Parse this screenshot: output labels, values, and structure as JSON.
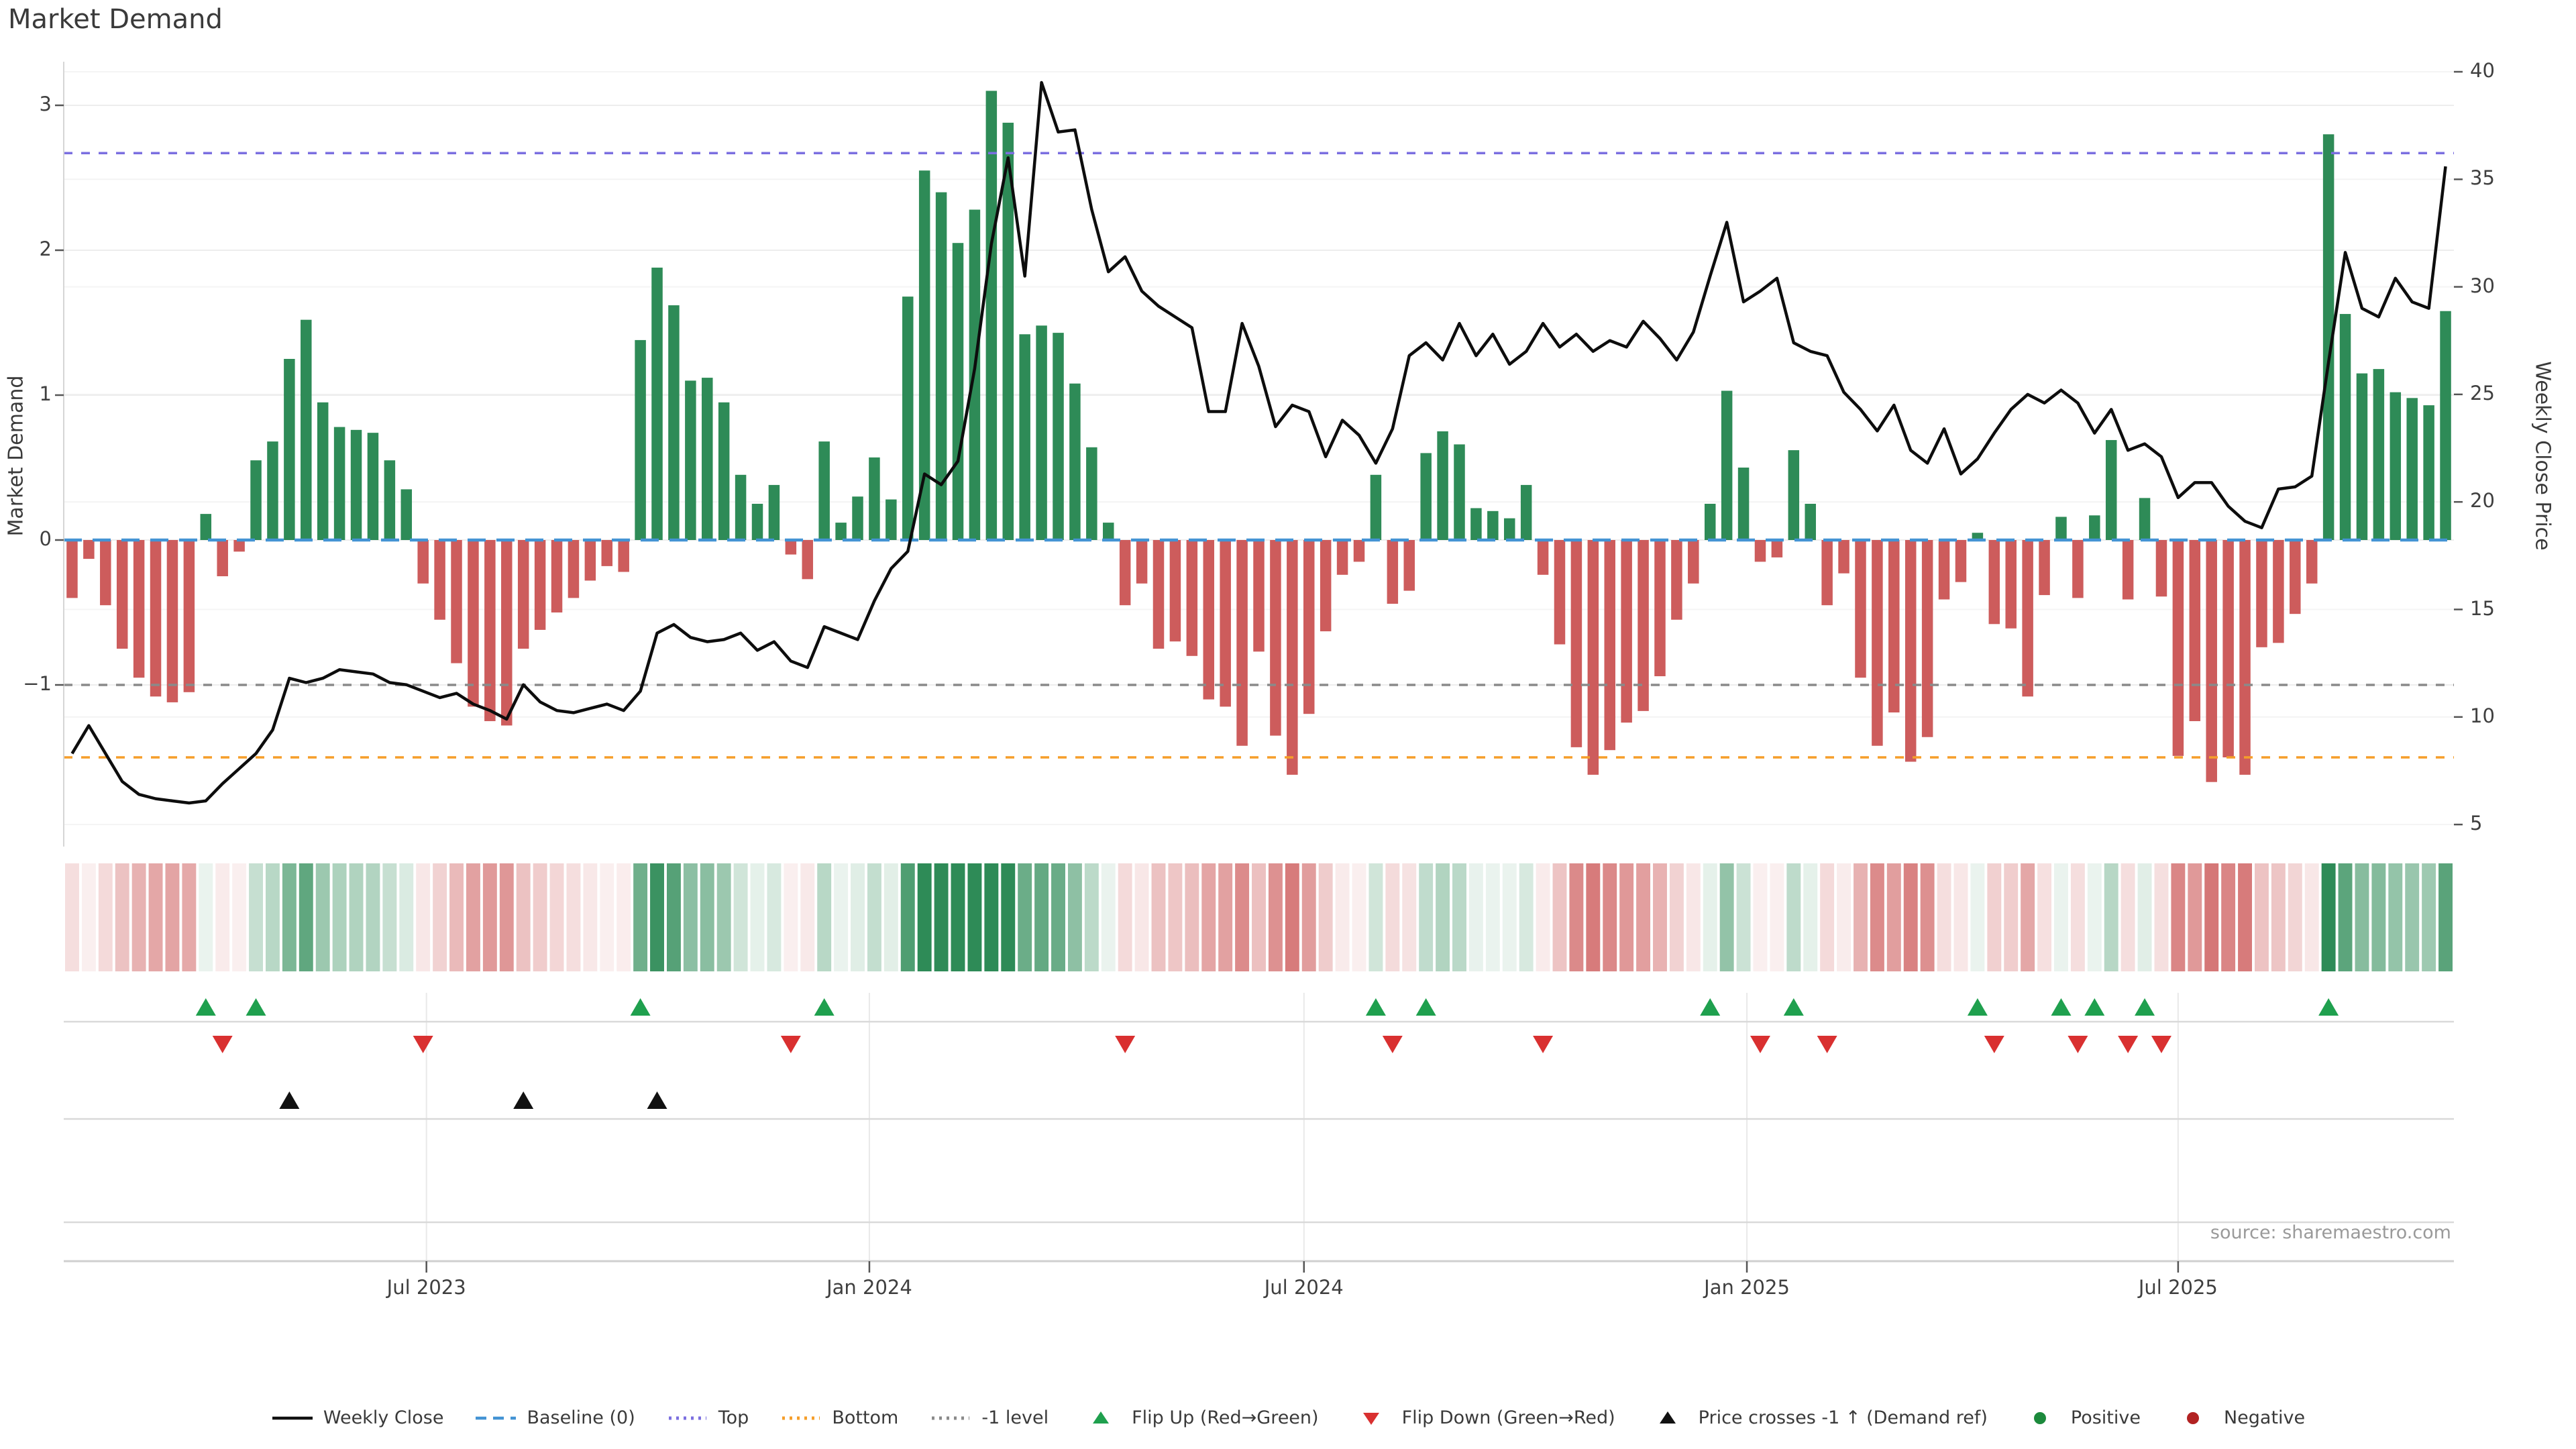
{
  "chart_data": {
    "type": "bar+line combo with heatmap strip and event-marker rows",
    "title": "Market Demand",
    "source": "source: sharemaestro.com",
    "left_axis": {
      "label": "Market Demand",
      "ticks": [
        3,
        2,
        1,
        0,
        -1
      ],
      "tick_labels": [
        "3",
        "2",
        "1",
        "0",
        "−1"
      ]
    },
    "right_axis": {
      "label": "Weekly Close Price",
      "ticks": [
        40,
        35,
        30,
        25,
        20,
        15,
        10,
        5
      ]
    },
    "x_ticks": [
      {
        "label": "Jul 2023",
        "week": 21.2
      },
      {
        "label": "Jan 2024",
        "week": 47.7
      },
      {
        "label": "Jul 2024",
        "week": 73.7
      },
      {
        "label": "Jan 2025",
        "week": 100.2
      },
      {
        "label": "Jul 2025",
        "week": 126.0
      }
    ],
    "levels": {
      "baseline": 0,
      "top": 2.67,
      "bottom": -1.5,
      "minus1": -1
    },
    "demand_ylim": [
      -2.1,
      3.3
    ],
    "price_ylim": [
      4,
      41
    ],
    "weeks_total": 143,
    "demand": [
      -0.4,
      -0.13,
      -0.45,
      -0.75,
      -0.95,
      -1.08,
      -1.12,
      -1.05,
      0.18,
      -0.25,
      -0.08,
      0.55,
      0.68,
      1.25,
      1.52,
      0.95,
      0.78,
      0.76,
      0.74,
      0.55,
      0.35,
      -0.3,
      -0.55,
      -0.85,
      -1.15,
      -1.25,
      -1.28,
      -0.75,
      -0.62,
      -0.5,
      -0.4,
      -0.28,
      -0.18,
      -0.22,
      1.38,
      1.88,
      1.62,
      1.1,
      1.12,
      0.95,
      0.45,
      0.25,
      0.38,
      -0.1,
      -0.27,
      0.68,
      0.12,
      0.3,
      0.57,
      0.28,
      1.68,
      2.55,
      2.4,
      2.05,
      2.28,
      3.1,
      2.88,
      1.42,
      1.48,
      1.43,
      1.08,
      0.64,
      0.12,
      -0.45,
      -0.3,
      -0.75,
      -0.7,
      -0.8,
      -1.1,
      -1.15,
      -1.42,
      -0.77,
      -1.35,
      -1.62,
      -1.2,
      -0.63,
      -0.24,
      -0.15,
      0.45,
      -0.44,
      -0.35,
      0.6,
      0.75,
      0.66,
      0.22,
      0.2,
      0.15,
      0.38,
      -0.24,
      -0.72,
      -1.43,
      -1.62,
      -1.45,
      -1.26,
      -1.18,
      -0.94,
      -0.55,
      -0.3,
      0.25,
      1.03,
      0.5,
      -0.15,
      -0.12,
      0.62,
      0.25,
      -0.45,
      -0.23,
      -0.95,
      -1.42,
      -1.19,
      -1.53,
      -1.36,
      -0.41,
      -0.29,
      0.05,
      -0.58,
      -0.61,
      -1.08,
      -0.38,
      0.16,
      -0.4,
      0.17,
      0.69,
      -0.41,
      0.29,
      -0.39,
      -1.49,
      -1.25,
      -1.67,
      -1.5,
      -1.62,
      -0.74,
      -0.71,
      -0.51,
      -0.3,
      2.8,
      1.56,
      1.15,
      1.18,
      1.02,
      0.98,
      0.93,
      1.58
    ],
    "price": [
      8.3,
      9.6,
      8.3,
      7.0,
      6.4,
      6.2,
      6.1,
      6.0,
      6.1,
      6.9,
      7.6,
      8.3,
      9.4,
      11.8,
      11.6,
      11.8,
      12.2,
      12.1,
      12.0,
      11.6,
      11.5,
      11.2,
      10.9,
      11.1,
      10.6,
      10.3,
      9.9,
      11.5,
      10.7,
      10.3,
      10.2,
      10.4,
      10.6,
      10.3,
      11.2,
      13.9,
      14.3,
      13.7,
      13.5,
      13.6,
      13.9,
      13.1,
      13.5,
      12.6,
      12.3,
      14.2,
      13.9,
      13.6,
      15.4,
      16.9,
      17.7,
      21.3,
      20.8,
      21.9,
      26.2,
      32.0,
      36.0,
      30.5,
      39.5,
      37.2,
      37.3,
      33.6,
      30.7,
      31.4,
      29.8,
      29.1,
      28.6,
      28.1,
      24.2,
      24.2,
      28.3,
      26.3,
      23.5,
      24.5,
      24.2,
      22.1,
      23.8,
      23.1,
      21.8,
      23.4,
      26.8,
      27.4,
      26.6,
      28.3,
      26.8,
      27.8,
      26.4,
      27.0,
      28.3,
      27.2,
      27.8,
      27.0,
      27.5,
      27.2,
      28.4,
      27.6,
      26.6,
      27.9,
      30.5,
      33.0,
      29.3,
      29.8,
      30.4,
      27.4,
      27.0,
      26.8,
      25.1,
      24.3,
      23.3,
      24.5,
      22.4,
      21.8,
      23.4,
      21.3,
      22.0,
      23.2,
      24.3,
      25.0,
      24.6,
      25.2,
      24.6,
      23.2,
      24.3,
      22.4,
      22.7,
      22.1,
      20.2,
      20.9,
      20.9,
      19.8,
      19.1,
      18.8,
      20.6,
      20.7,
      21.2,
      26.5,
      31.6,
      29.0,
      28.6,
      30.4,
      29.3,
      29.0,
      35.6
    ],
    "flip_up_weeks": [
      8,
      11,
      34,
      45,
      78,
      81,
      98,
      103,
      114,
      119,
      121,
      124,
      135
    ],
    "flip_down_weeks": [
      9,
      21,
      43,
      63,
      79,
      88,
      101,
      105,
      115,
      120,
      123,
      125
    ],
    "price_cross_weeks": [
      13,
      27,
      35
    ],
    "legend": [
      {
        "glyph": "line",
        "color": "#111111",
        "label": "Weekly Close"
      },
      {
        "glyph": "dash",
        "color": "#4393d4",
        "label": "Baseline (0)"
      },
      {
        "glyph": "dot",
        "color": "#7b6fe0",
        "label": "Top"
      },
      {
        "glyph": "dot",
        "color": "#f59e2a",
        "label": "Bottom"
      },
      {
        "glyph": "dot",
        "color": "#8a8a8a",
        "label": "-1 level"
      },
      {
        "glyph": "tri-up",
        "color": "#1fa04e",
        "label": "Flip Up (Red→Green)"
      },
      {
        "glyph": "tri-down",
        "color": "#d93030",
        "label": "Flip Down (Green→Red)"
      },
      {
        "glyph": "tri-up",
        "color": "#111111",
        "label": "Price crosses -1 ↑ (Demand ref)"
      },
      {
        "glyph": "circle",
        "color": "#1c8a3c",
        "label": "Positive"
      },
      {
        "glyph": "circle",
        "color": "#b22222",
        "label": "Negative"
      }
    ],
    "colors": {
      "bar_positive": "#2e8b57",
      "bar_negative": "#cd5c5c",
      "price_line": "#0d0d0d",
      "baseline": "#4393d4",
      "top_line": "#7b6fe0",
      "bottom_line": "#f59e2a",
      "minus1_line": "#8a8a8a",
      "flip_up": "#1fa04e",
      "flip_down": "#d93030",
      "price_cross": "#111111",
      "grid": "#ededed",
      "grid_faint": "#f4f4f4",
      "panel_line": "#d9d9d9",
      "spine": "#cfcfcf"
    }
  }
}
